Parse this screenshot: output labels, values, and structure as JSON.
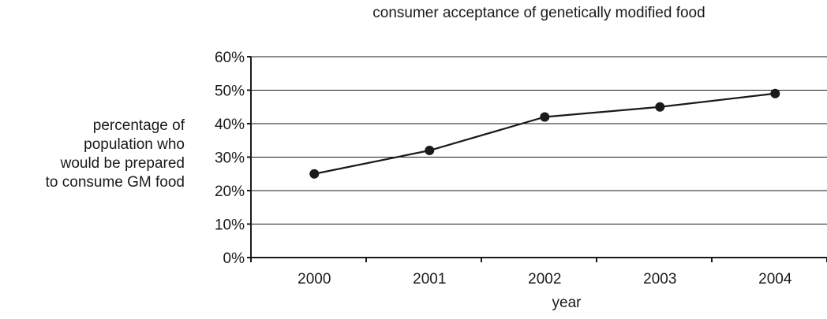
{
  "chart_data": {
    "type": "line",
    "title": "consumer acceptance of genetically modified food",
    "xlabel": "year",
    "ylabel_lines": [
      "percentage of",
      "population who",
      "would be prepared",
      "to consume GM food"
    ],
    "categories": [
      "2000",
      "2001",
      "2002",
      "2003",
      "2004"
    ],
    "series": [
      {
        "values": [
          25,
          32,
          42,
          45,
          49
        ]
      }
    ],
    "y_ticks": [
      0,
      10,
      20,
      30,
      40,
      50,
      60
    ],
    "y_tick_labels": [
      "0%",
      "10%",
      "20%",
      "30%",
      "40%",
      "50%",
      "60%"
    ],
    "ylim": [
      0,
      60
    ],
    "grid": "horizontal",
    "line_color": "#1a1a1a",
    "marker_color": "#1a1a1a"
  }
}
